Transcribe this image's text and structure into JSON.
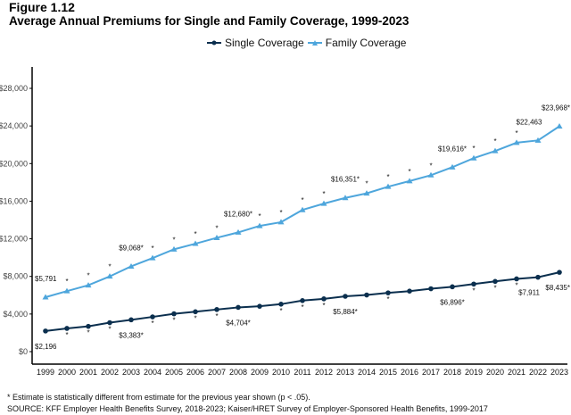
{
  "chart_data": {
    "type": "line",
    "figure_label": "Figure 1.12",
    "title": "Average Annual Premiums for Single and Family Coverage, 1999-2023",
    "x": [
      1999,
      2000,
      2001,
      2002,
      2003,
      2004,
      2005,
      2006,
      2007,
      2008,
      2009,
      2010,
      2011,
      2012,
      2013,
      2014,
      2015,
      2016,
      2017,
      2018,
      2019,
      2020,
      2021,
      2022,
      2023
    ],
    "xlabels": [
      "1999",
      "2000",
      "2001",
      "2002",
      "2003",
      "2004",
      "2005",
      "2006",
      "2007",
      "2008",
      "2009",
      "2010",
      "2011",
      "2012",
      "2013",
      "2014",
      "2015",
      "2016",
      "2017",
      "2018",
      "2019",
      "2020",
      "2021",
      "2022",
      "2023"
    ],
    "ylim": [
      0,
      28000
    ],
    "yticks": [
      0,
      4000,
      8000,
      12000,
      16000,
      20000,
      24000,
      28000
    ],
    "yticklabels": [
      "$0",
      "$4,000",
      "$8,000",
      "$12,000",
      "$16,000",
      "$20,000",
      "$24,000",
      "$28,000"
    ],
    "legend_position": "top-center",
    "series": [
      {
        "name": "Single Coverage",
        "color": "#0b2f4e",
        "marker": "circle",
        "values": [
          2196,
          2471,
          2689,
          3083,
          3383,
          3695,
          4024,
          4242,
          4479,
          4704,
          4824,
          5049,
          5429,
          5615,
          5884,
          6025,
          6251,
          6435,
          6690,
          6896,
          7188,
          7470,
          7739,
          7911,
          8435
        ],
        "significant_years": [
          2000,
          2001,
          2002,
          2003,
          2004,
          2005,
          2006,
          2007,
          2008,
          2010,
          2011,
          2012,
          2013,
          2015,
          2018,
          2019,
          2020,
          2021,
          2023
        ],
        "labels": [
          {
            "year": 1999,
            "text": "$2,196"
          },
          {
            "year": 2003,
            "text": "$3,383*"
          },
          {
            "year": 2008,
            "text": "$4,704*"
          },
          {
            "year": 2013,
            "text": "$5,884*"
          },
          {
            "year": 2018,
            "text": "$6,896*"
          },
          {
            "year": 2022,
            "text": "$7,911"
          },
          {
            "year": 2023,
            "text": "$8,435*"
          }
        ]
      },
      {
        "name": "Family Coverage",
        "color": "#4ea6dc",
        "marker": "triangle",
        "values": [
          5791,
          6438,
          7061,
          8003,
          9068,
          9950,
          10880,
          11480,
          12106,
          12680,
          13375,
          13770,
          15073,
          15745,
          16351,
          16834,
          17545,
          18142,
          18764,
          19616,
          20576,
          21342,
          22221,
          22463,
          23968
        ],
        "significant_years": [
          2000,
          2001,
          2002,
          2003,
          2004,
          2005,
          2006,
          2007,
          2008,
          2009,
          2010,
          2011,
          2012,
          2013,
          2014,
          2015,
          2016,
          2017,
          2018,
          2019,
          2020,
          2021,
          2023
        ],
        "labels": [
          {
            "year": 1999,
            "text": "$5,791"
          },
          {
            "year": 2003,
            "text": "$9,068*"
          },
          {
            "year": 2008,
            "text": "$12,680*"
          },
          {
            "year": 2013,
            "text": "$16,351*"
          },
          {
            "year": 2018,
            "text": "$19,616*"
          },
          {
            "year": 2022,
            "text": "$22,463"
          },
          {
            "year": 2023,
            "text": "$23,968*"
          }
        ]
      }
    ],
    "footnote": "* Estimate is statistically different from estimate for the previous year shown (p < .05).",
    "source": "SOURCE: KFF Employer Health Benefits Survey, 2018-2023; Kaiser/HRET Survey of Employer-Sponsored Health Benefits, 1999-2017"
  }
}
